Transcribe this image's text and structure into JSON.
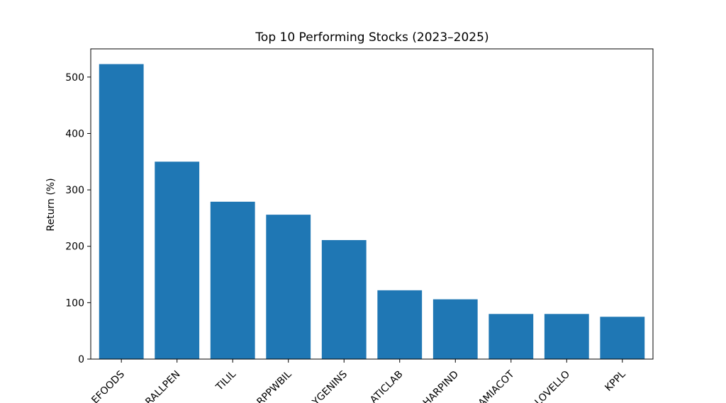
{
  "chart_data": {
    "type": "bar",
    "title": "Top 10 Performing Stocks (2023–2025)",
    "xlabel": "",
    "ylabel": "Return (%)",
    "ylim": [
      0,
      550
    ],
    "yticks": [
      0,
      100,
      200,
      300,
      400,
      500
    ],
    "categories": [
      "EFOODS",
      "RALLPEN",
      "TILIL",
      "RPPWBIL",
      "YGENINS",
      "ATICLAB",
      "HARPIND",
      "AMIACOT",
      "LOVELLO",
      "KPPL"
    ],
    "values": [
      523,
      350,
      279,
      256,
      211,
      122,
      106,
      80,
      80,
      75
    ],
    "bar_color": "#1f77b4",
    "grid": false,
    "legend": "none"
  }
}
